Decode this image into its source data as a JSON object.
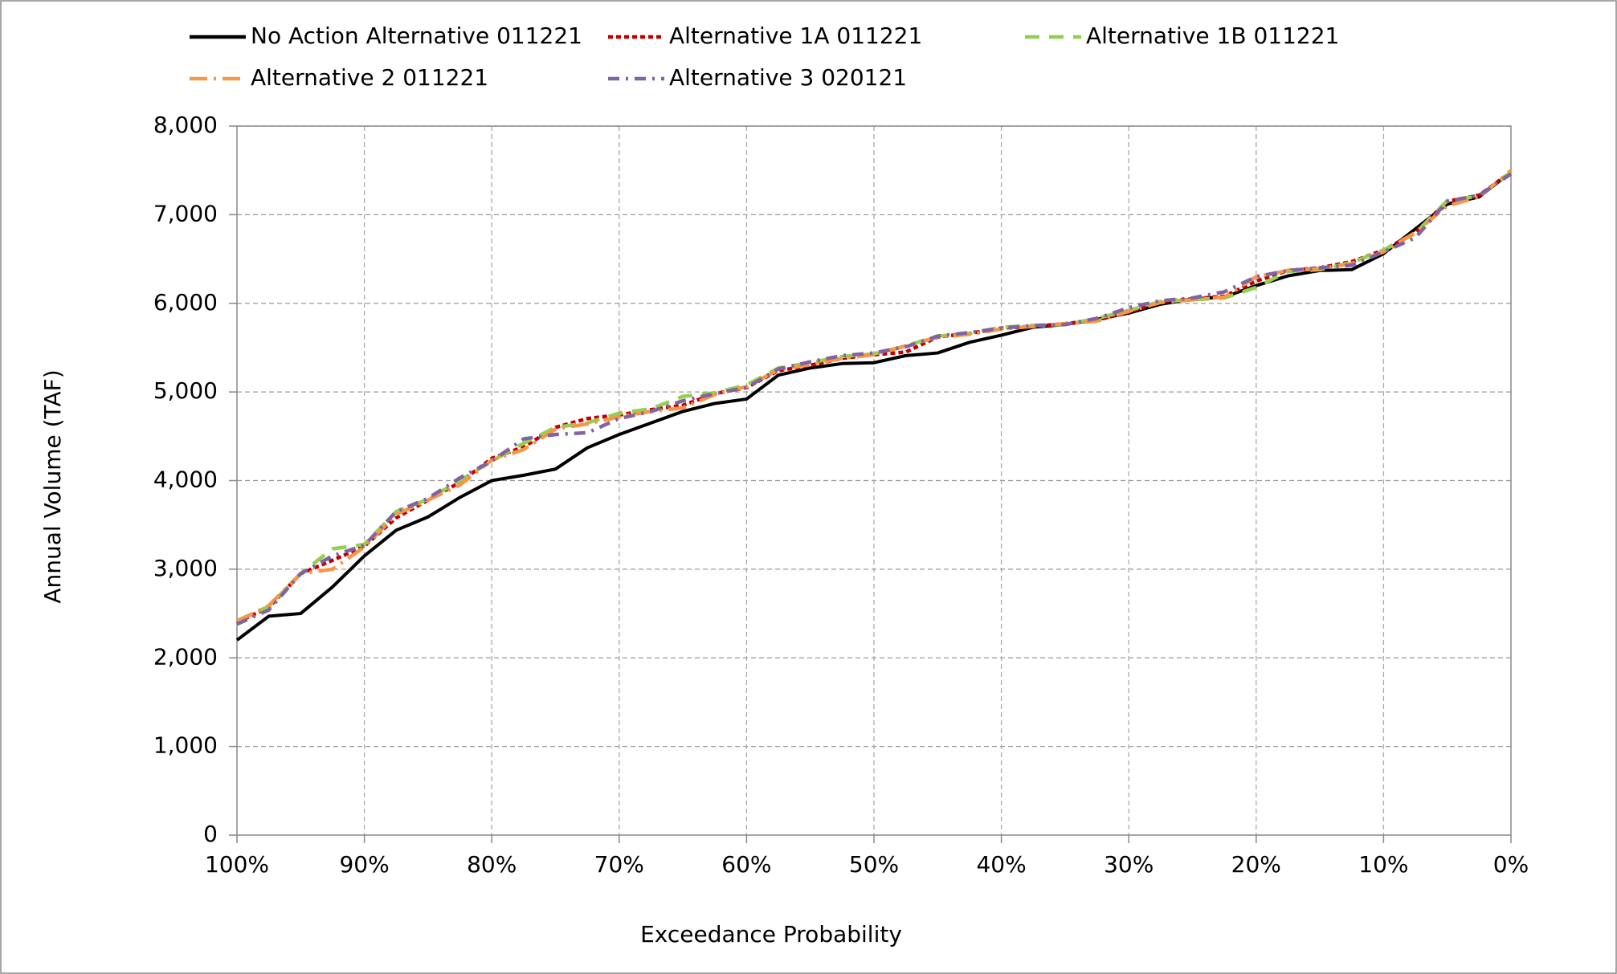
{
  "chart_data": {
    "type": "line",
    "x_label": "Exceedance Probability",
    "y_label": "Annual Volume (TAF)",
    "x": [
      100,
      97.5,
      95,
      92.5,
      90,
      87.5,
      85,
      82.5,
      80,
      77.5,
      75,
      72.5,
      70,
      67.5,
      65,
      62.5,
      60,
      57.5,
      55,
      52.5,
      50,
      47.5,
      45,
      42.5,
      40,
      37.5,
      35,
      32.5,
      30,
      27.5,
      25,
      22.5,
      20,
      17.5,
      15,
      12.5,
      10,
      7.5,
      5,
      2.5,
      0
    ],
    "series": [
      {
        "name": "No Action Alternative 011221",
        "color": "#000000",
        "dash": "none",
        "values": [
          2200,
          2470,
          2500,
          2800,
          3150,
          3440,
          3590,
          3810,
          4000,
          4060,
          4130,
          4370,
          4520,
          4650,
          4780,
          4870,
          4920,
          5190,
          5270,
          5320,
          5330,
          5410,
          5440,
          5560,
          5640,
          5730,
          5760,
          5820,
          5890,
          5990,
          6050,
          6070,
          6200,
          6310,
          6370,
          6380,
          6560,
          6840,
          7120,
          7200,
          7480
        ]
      },
      {
        "name": "Alternative 1A 011221",
        "color": "#c00000",
        "dash": "6,4",
        "values": [
          2400,
          2570,
          2950,
          3100,
          3260,
          3580,
          3780,
          3980,
          4250,
          4380,
          4600,
          4700,
          4740,
          4800,
          4850,
          4980,
          5050,
          5240,
          5300,
          5380,
          5420,
          5450,
          5620,
          5660,
          5720,
          5740,
          5770,
          5810,
          5900,
          6020,
          6050,
          6080,
          6250,
          6370,
          6400,
          6470,
          6600,
          6800,
          7150,
          7220,
          7480
        ]
      },
      {
        "name": "Alternative 1B 011221",
        "color": "#92d050",
        "dash": "18,12",
        "values": [
          2420,
          2580,
          2950,
          3230,
          3280,
          3650,
          3790,
          4000,
          4220,
          4420,
          4600,
          4650,
          4760,
          4810,
          4950,
          4990,
          5080,
          5270,
          5330,
          5400,
          5430,
          5520,
          5630,
          5660,
          5730,
          5750,
          5760,
          5830,
          5920,
          6020,
          6040,
          6060,
          6180,
          6360,
          6380,
          6460,
          6600,
          6790,
          7160,
          7210,
          7480
        ]
      },
      {
        "name": "Alternative 2 011221",
        "color": "#f79646",
        "dash": "22,8,3,8",
        "values": [
          2410,
          2590,
          2950,
          3000,
          3250,
          3620,
          3780,
          3950,
          4230,
          4350,
          4580,
          4640,
          4720,
          4780,
          4820,
          4970,
          5060,
          5250,
          5310,
          5380,
          5420,
          5520,
          5620,
          5650,
          5710,
          5740,
          5770,
          5800,
          5910,
          6010,
          6040,
          6070,
          6300,
          6370,
          6390,
          6450,
          6580,
          6800,
          7100,
          7200,
          7500
        ]
      },
      {
        "name": "Alternative 3 020121",
        "color": "#8064a2",
        "dash": "14,8,3,8",
        "values": [
          2380,
          2540,
          2950,
          3150,
          3270,
          3650,
          3800,
          4030,
          4220,
          4470,
          4520,
          4540,
          4700,
          4780,
          4900,
          4980,
          5050,
          5260,
          5340,
          5410,
          5440,
          5510,
          5630,
          5670,
          5720,
          5750,
          5760,
          5830,
          5950,
          6030,
          6060,
          6130,
          6300,
          6370,
          6400,
          6430,
          6580,
          6740,
          7150,
          7220,
          7460
        ]
      }
    ],
    "xlim": [
      100,
      0
    ],
    "xticks": [
      {
        "value": 100,
        "label": "100%"
      },
      {
        "value": 90,
        "label": "90%"
      },
      {
        "value": 80,
        "label": "80%"
      },
      {
        "value": 70,
        "label": "70%"
      },
      {
        "value": 60,
        "label": "60%"
      },
      {
        "value": 50,
        "label": "50%"
      },
      {
        "value": 40,
        "label": "40%"
      },
      {
        "value": 30,
        "label": "30%"
      },
      {
        "value": 20,
        "label": "20%"
      },
      {
        "value": 10,
        "label": "10%"
      },
      {
        "value": 0,
        "label": "0%"
      }
    ],
    "ylim": [
      0,
      8000
    ],
    "yticks": [
      0,
      {
        "value": 1000,
        "label": "1,000"
      },
      {
        "value": 2000,
        "label": "2,000"
      },
      {
        "value": 3000,
        "label": "3,000"
      },
      {
        "value": 4000,
        "label": "4,000"
      },
      {
        "value": 5000,
        "label": "5,000"
      },
      {
        "value": 6000,
        "label": "6,000"
      },
      {
        "value": 7000,
        "label": "7,000"
      },
      {
        "value": 8000,
        "label": "8,000"
      }
    ],
    "grid": true,
    "legend": "top"
  }
}
